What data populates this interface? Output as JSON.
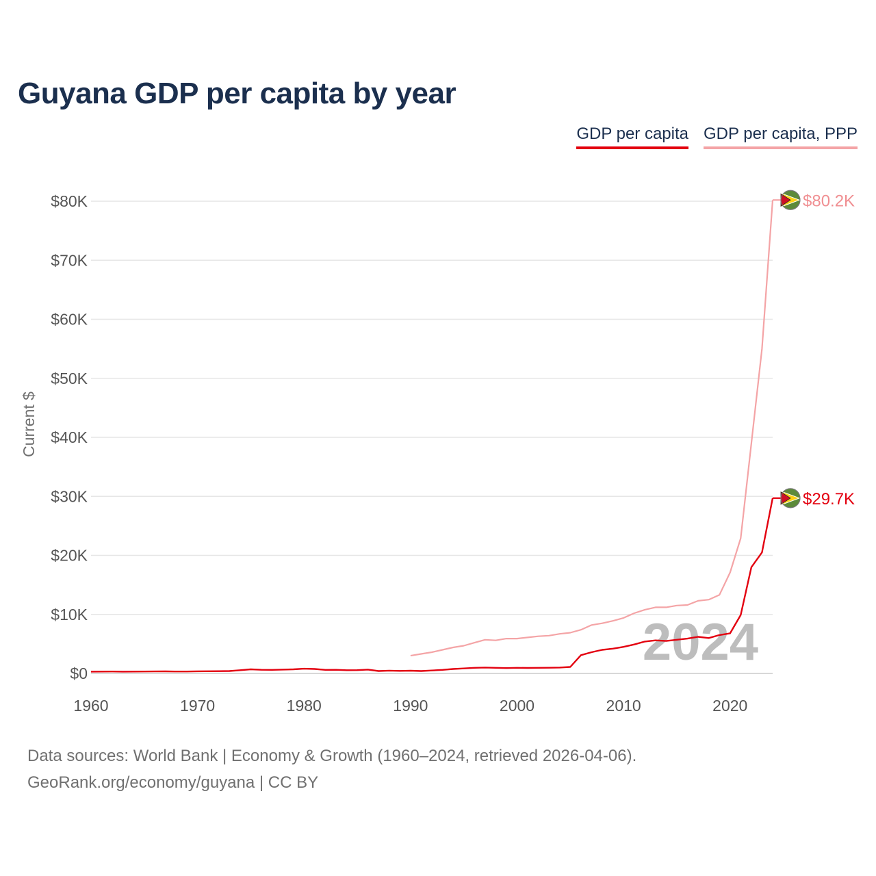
{
  "header": {
    "title": "Guyana GDP per capita by year"
  },
  "legend": {
    "gdp": "GDP per capita",
    "ppp": "GDP per capita, PPP"
  },
  "colors": {
    "gdp": "#e3000f",
    "ppp": "#f4a4a6",
    "title": "#1b2f4e"
  },
  "footer": {
    "line1": "Data sources: World Bank | Economy & Growth (1960–2024, retrieved 2026-04-06).",
    "line2": "GeoRank.org/economy/guyana | CC BY"
  },
  "chart_data": {
    "type": "line",
    "title": "Guyana GDP per capita by year",
    "xlabel": "",
    "ylabel": "Current $",
    "xlim": [
      1960,
      2024
    ],
    "ylim": [
      0,
      80000
    ],
    "x_ticks": [
      1960,
      1970,
      1980,
      1990,
      2000,
      2010,
      2020
    ],
    "y_ticks": [
      {
        "value": 0,
        "label": "$0"
      },
      {
        "value": 10000,
        "label": "$10K"
      },
      {
        "value": 20000,
        "label": "$20K"
      },
      {
        "value": 30000,
        "label": "$30K"
      },
      {
        "value": 40000,
        "label": "$40K"
      },
      {
        "value": 50000,
        "label": "$50K"
      },
      {
        "value": 60000,
        "label": "$60K"
      },
      {
        "value": 70000,
        "label": "$70K"
      },
      {
        "value": 80000,
        "label": "$80K"
      }
    ],
    "grid": true,
    "watermark_year": "2024",
    "series": [
      {
        "name": "GDP per capita",
        "key": "gdp",
        "end_label": "$29.7K",
        "points": [
          [
            1960,
            300
          ],
          [
            1961,
            310
          ],
          [
            1962,
            320
          ],
          [
            1963,
            300
          ],
          [
            1964,
            310
          ],
          [
            1965,
            330
          ],
          [
            1966,
            340
          ],
          [
            1967,
            350
          ],
          [
            1968,
            320
          ],
          [
            1969,
            330
          ],
          [
            1970,
            360
          ],
          [
            1971,
            370
          ],
          [
            1972,
            380
          ],
          [
            1973,
            400
          ],
          [
            1974,
            550
          ],
          [
            1975,
            700
          ],
          [
            1976,
            620
          ],
          [
            1977,
            600
          ],
          [
            1978,
            650
          ],
          [
            1979,
            700
          ],
          [
            1980,
            800
          ],
          [
            1981,
            750
          ],
          [
            1982,
            600
          ],
          [
            1983,
            620
          ],
          [
            1984,
            550
          ],
          [
            1985,
            560
          ],
          [
            1986,
            650
          ],
          [
            1987,
            400
          ],
          [
            1988,
            480
          ],
          [
            1989,
            430
          ],
          [
            1990,
            460
          ],
          [
            1991,
            400
          ],
          [
            1992,
            500
          ],
          [
            1993,
            600
          ],
          [
            1994,
            750
          ],
          [
            1995,
            850
          ],
          [
            1996,
            950
          ],
          [
            1997,
            1000
          ],
          [
            1998,
            950
          ],
          [
            1999,
            900
          ],
          [
            2000,
            950
          ],
          [
            2001,
            930
          ],
          [
            2002,
            950
          ],
          [
            2003,
            960
          ],
          [
            2004,
            1000
          ],
          [
            2005,
            1100
          ],
          [
            2006,
            3100
          ],
          [
            2007,
            3600
          ],
          [
            2008,
            4000
          ],
          [
            2009,
            4200
          ],
          [
            2010,
            4500
          ],
          [
            2011,
            4900
          ],
          [
            2012,
            5400
          ],
          [
            2013,
            5600
          ],
          [
            2014,
            5500
          ],
          [
            2015,
            5700
          ],
          [
            2016,
            5900
          ],
          [
            2017,
            6200
          ],
          [
            2018,
            6000
          ],
          [
            2019,
            6500
          ],
          [
            2020,
            6800
          ],
          [
            2021,
            9900
          ],
          [
            2022,
            18000
          ],
          [
            2023,
            20500
          ],
          [
            2024,
            29700
          ]
        ]
      },
      {
        "name": "GDP per capita, PPP",
        "key": "ppp",
        "end_label": "$80.2K",
        "points": [
          [
            1990,
            3000
          ],
          [
            1991,
            3300
          ],
          [
            1992,
            3600
          ],
          [
            1993,
            4000
          ],
          [
            1994,
            4400
          ],
          [
            1995,
            4700
          ],
          [
            1996,
            5200
          ],
          [
            1997,
            5700
          ],
          [
            1998,
            5600
          ],
          [
            1999,
            5900
          ],
          [
            2000,
            5900
          ],
          [
            2001,
            6100
          ],
          [
            2002,
            6300
          ],
          [
            2003,
            6400
          ],
          [
            2004,
            6700
          ],
          [
            2005,
            6900
          ],
          [
            2006,
            7400
          ],
          [
            2007,
            8200
          ],
          [
            2008,
            8500
          ],
          [
            2009,
            8900
          ],
          [
            2010,
            9400
          ],
          [
            2011,
            10200
          ],
          [
            2012,
            10800
          ],
          [
            2013,
            11200
          ],
          [
            2014,
            11200
          ],
          [
            2015,
            11500
          ],
          [
            2016,
            11600
          ],
          [
            2017,
            12300
          ],
          [
            2018,
            12500
          ],
          [
            2019,
            13300
          ],
          [
            2020,
            17100
          ],
          [
            2021,
            22900
          ],
          [
            2022,
            39000
          ],
          [
            2023,
            55000
          ],
          [
            2024,
            80200
          ]
        ]
      }
    ]
  }
}
